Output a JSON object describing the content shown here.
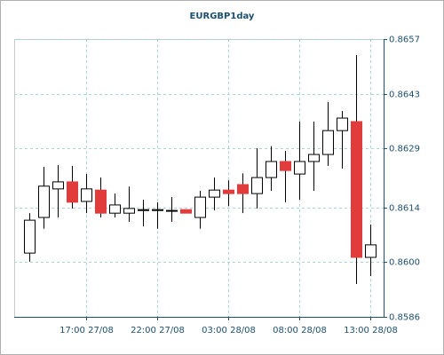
{
  "chart_data": {
    "type": "candlestick",
    "title": "EURGBP1day",
    "categories": [
      null,
      null,
      null,
      null,
      "17:00 27/08",
      null,
      null,
      null,
      null,
      "22:00 27/08",
      null,
      null,
      null,
      null,
      "03:00 28/08",
      null,
      null,
      null,
      null,
      "08:00 28/08",
      null,
      null,
      null,
      null,
      "13:00 28/08"
    ],
    "open": [
      0.86023,
      0.86114,
      0.86187,
      0.86205,
      0.86155,
      0.86184,
      0.86125,
      0.86125,
      0.86134,
      0.86134,
      0.86132,
      0.86134,
      0.86114,
      0.86166,
      0.86184,
      0.86198,
      0.86175,
      0.86216,
      0.86257,
      0.86225,
      0.86257,
      0.86275,
      0.86336,
      0.86359,
      0.86012
    ],
    "high": [
      0.86125,
      0.86243,
      0.86248,
      0.86246,
      0.86225,
      0.86216,
      0.86175,
      0.86193,
      0.86159,
      0.86153,
      0.86166,
      0.86134,
      0.86182,
      0.86216,
      0.86209,
      0.86227,
      0.86291,
      0.86296,
      0.86284,
      0.86359,
      0.86359,
      0.86409,
      0.86386,
      0.86529,
      0.86096
    ],
    "low": [
      0.86001,
      0.86085,
      0.86114,
      0.86137,
      0.86125,
      0.86114,
      0.86114,
      0.86103,
      0.86091,
      0.86085,
      0.86103,
      0.86125,
      0.86085,
      0.86132,
      0.86143,
      0.86125,
      0.86137,
      0.86182,
      0.86153,
      0.86159,
      0.86182,
      0.86246,
      0.86239,
      0.85944,
      0.85964
    ],
    "close": [
      0.86107,
      0.86194,
      0.86205,
      0.86153,
      0.86187,
      0.86125,
      0.86146,
      0.86137,
      0.86134,
      0.86134,
      0.86132,
      0.86125,
      0.86166,
      0.86184,
      0.86175,
      0.86175,
      0.86216,
      0.86257,
      0.86234,
      0.86257,
      0.86275,
      0.86336,
      0.86368,
      0.86012,
      0.86044
    ],
    "up_color": "#ffffff",
    "down_color": "#e23b3b",
    "ylim": [
      0.8586,
      0.8657
    ],
    "yticks": [
      0.8586,
      {
        "value": 0.86,
        "label": "0.8600"
      },
      0.8614,
      0.8629,
      0.8643,
      0.8657
    ],
    "grid": true
  }
}
